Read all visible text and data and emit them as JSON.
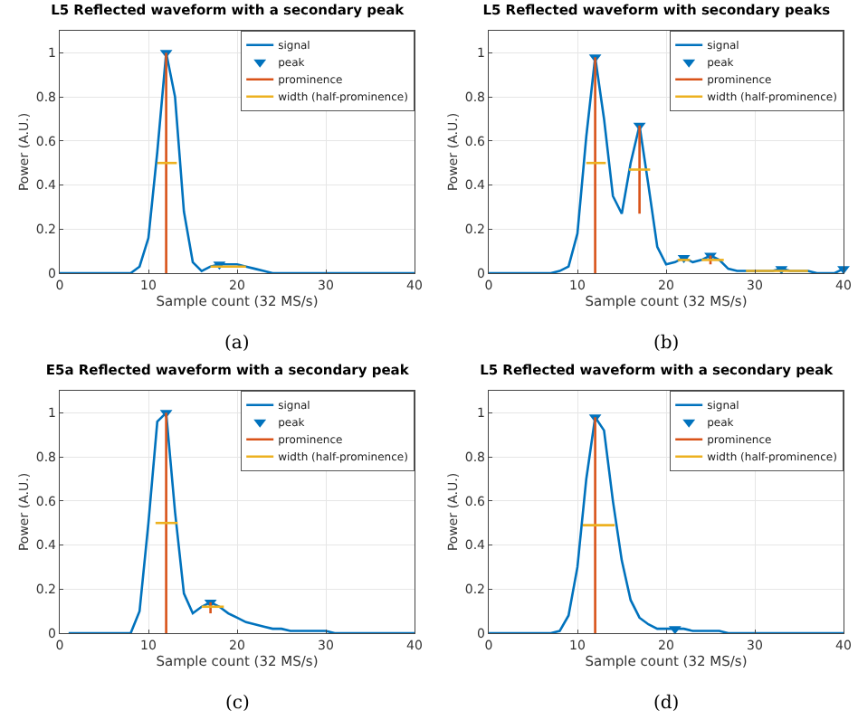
{
  "chart_data": [
    {
      "type": "line",
      "title": "L5 Reflected waveform with a secondary peak",
      "xlabel": "Sample count (32 MS/s)",
      "ylabel": "Power (A.U.)",
      "annotations": [
        "(a)"
      ],
      "xlim": [
        0,
        40
      ],
      "ylim": [
        0,
        1.1
      ],
      "xticks": [
        0,
        10,
        20,
        30,
        40
      ],
      "yticks": [
        0,
        0.2,
        0.4,
        0.6,
        0.8,
        1
      ],
      "grid": true,
      "legend": "top right",
      "x": [
        0,
        1,
        2,
        3,
        4,
        5,
        6,
        7,
        8,
        9,
        10,
        11,
        12,
        13,
        14,
        15,
        16,
        17,
        18,
        19,
        20,
        21,
        22,
        23,
        24,
        25,
        26,
        27,
        28,
        29,
        30,
        31,
        32,
        33,
        34,
        35,
        36,
        37,
        38,
        39,
        40
      ],
      "series": [
        {
          "name": "signal",
          "color": "#0072bd",
          "marker": "none",
          "values": [
            0,
            0,
            0,
            0,
            0,
            0,
            0,
            0,
            0,
            0.03,
            0.16,
            0.55,
            1,
            0.8,
            0.28,
            0.05,
            0.01,
            0.03,
            0.04,
            0.04,
            0.04,
            0.03,
            0.02,
            0.01,
            0,
            0,
            0,
            0,
            0,
            0,
            0,
            0,
            0,
            0,
            0,
            0,
            0,
            0,
            0,
            0,
            0
          ]
        },
        {
          "name": "peak",
          "type": "scatter",
          "color": "#0072bd",
          "marker": "triangle",
          "x": [
            12,
            18
          ],
          "values": [
            1,
            0.04
          ]
        },
        {
          "name": "prominence",
          "color": "#d95319",
          "marker": "none",
          "x": [
            12,
            12
          ],
          "values": [
            0,
            1
          ]
        },
        {
          "name": "width (half-prominence)",
          "color": "#edb120",
          "marker": "none",
          "x": [
            11,
            13.2,
            null,
            17,
            21
          ],
          "values": [
            0.5,
            0.5,
            null,
            0.03,
            0.03
          ]
        }
      ]
    },
    {
      "type": "line",
      "title": "L5 Reflected waveform with secondary peaks",
      "xlabel": "Sample count (32 MS/s)",
      "ylabel": "Power (A.U.)",
      "annotations": [
        "(b)"
      ],
      "xlim": [
        0,
        40
      ],
      "ylim": [
        0,
        1.1
      ],
      "xticks": [
        0,
        10,
        20,
        30,
        40
      ],
      "yticks": [
        0,
        0.2,
        0.4,
        0.6,
        0.8,
        1
      ],
      "grid": true,
      "legend": "top right",
      "x": [
        0,
        1,
        2,
        3,
        4,
        5,
        6,
        7,
        8,
        9,
        10,
        11,
        12,
        13,
        14,
        15,
        16,
        17,
        18,
        19,
        20,
        21,
        22,
        23,
        24,
        25,
        26,
        27,
        28,
        29,
        30,
        31,
        32,
        33,
        34,
        35,
        36,
        37,
        38,
        39,
        40
      ],
      "series": [
        {
          "name": "signal",
          "color": "#0072bd",
          "marker": "none",
          "values": [
            0,
            0,
            0,
            0,
            0,
            0,
            0,
            0,
            0.01,
            0.03,
            0.18,
            0.62,
            0.98,
            0.7,
            0.35,
            0.27,
            0.5,
            0.67,
            0.4,
            0.12,
            0.04,
            0.05,
            0.07,
            0.05,
            0.06,
            0.08,
            0.06,
            0.02,
            0.01,
            0.01,
            0.01,
            0.01,
            0.01,
            0.02,
            0.01,
            0.01,
            0.01,
            0,
            0,
            0,
            0.02
          ]
        },
        {
          "name": "peak",
          "type": "scatter",
          "color": "#0072bd",
          "marker": "triangle",
          "x": [
            12,
            17,
            22,
            25,
            33,
            40
          ],
          "values": [
            0.98,
            0.67,
            0.07,
            0.08,
            0.02,
            0.02
          ]
        },
        {
          "name": "prominence",
          "color": "#d95319",
          "marker": "none",
          "x": [
            12,
            12,
            null,
            17,
            17,
            null,
            25,
            25
          ],
          "values": [
            0,
            0.98,
            null,
            0.27,
            0.67,
            null,
            0.04,
            0.08
          ]
        },
        {
          "name": "width (half-prominence)",
          "color": "#edb120",
          "marker": "none",
          "x": [
            11,
            13.2,
            null,
            15.8,
            18.2,
            null,
            21.3,
            22.7,
            null,
            24,
            26.5,
            null,
            29,
            36
          ],
          "values": [
            0.5,
            0.5,
            null,
            0.47,
            0.47,
            null,
            0.06,
            0.06,
            null,
            0.06,
            0.06,
            null,
            0.01,
            0.01
          ]
        }
      ]
    },
    {
      "type": "line",
      "title": "E5a Reflected waveform with a secondary peak",
      "xlabel": "Sample count (32 MS/s)",
      "ylabel": "Power (A.U.)",
      "annotations": [
        "(c)"
      ],
      "xlim": [
        0,
        40
      ],
      "ylim": [
        0,
        1.1
      ],
      "xticks": [
        0,
        10,
        20,
        30,
        40
      ],
      "yticks": [
        0,
        0.2,
        0.4,
        0.6,
        0.8,
        1
      ],
      "grid": true,
      "legend": "top right",
      "series": [
        {
          "name": "signal",
          "color": "#0072bd",
          "marker": "none",
          "x": [
            1,
            2,
            3,
            4,
            5,
            6,
            7,
            8,
            9,
            10,
            11,
            12,
            13,
            14,
            15,
            16,
            17,
            18,
            19,
            20,
            21,
            22,
            23,
            24,
            25,
            26,
            27,
            28,
            29,
            30,
            31,
            32,
            33,
            34,
            35,
            36,
            37,
            38,
            39,
            40
          ],
          "values": [
            0,
            0,
            0,
            0,
            0,
            0,
            0,
            0,
            0.1,
            0.5,
            0.96,
            1,
            0.55,
            0.18,
            0.09,
            0.12,
            0.14,
            0.12,
            0.09,
            0.07,
            0.05,
            0.04,
            0.03,
            0.02,
            0.02,
            0.01,
            0.01,
            0.01,
            0.01,
            0.01,
            0,
            0,
            0,
            0,
            0,
            0,
            0,
            0,
            0,
            0
          ]
        },
        {
          "name": "peak",
          "type": "scatter",
          "color": "#0072bd",
          "marker": "triangle",
          "x": [
            12,
            17
          ],
          "values": [
            1,
            0.14
          ]
        },
        {
          "name": "prominence",
          "color": "#d95319",
          "marker": "none",
          "x": [
            12,
            12,
            null,
            17,
            17
          ],
          "values": [
            0,
            1,
            null,
            0.09,
            0.14
          ]
        },
        {
          "name": "width (half-prominence)",
          "color": "#edb120",
          "marker": "none",
          "x": [
            10.8,
            13.3,
            null,
            16,
            18.5
          ],
          "values": [
            0.5,
            0.5,
            null,
            0.12,
            0.12
          ]
        }
      ]
    },
    {
      "type": "line",
      "title": "L5 Reflected waveform with a secondary peak",
      "xlabel": "Sample count (32 MS/s)",
      "ylabel": "Power (A.U.)",
      "annotations": [
        "(d)"
      ],
      "xlim": [
        0,
        40
      ],
      "ylim": [
        0,
        1.1
      ],
      "xticks": [
        0,
        10,
        20,
        30,
        40
      ],
      "yticks": [
        0,
        0.2,
        0.4,
        0.6,
        0.8,
        1
      ],
      "grid": true,
      "legend": "top right",
      "x": [
        0,
        1,
        2,
        3,
        4,
        5,
        6,
        7,
        8,
        9,
        10,
        11,
        12,
        13,
        14,
        15,
        16,
        17,
        18,
        19,
        20,
        21,
        22,
        23,
        24,
        25,
        26,
        27,
        28,
        29,
        30,
        31,
        32,
        33,
        34,
        35,
        36,
        37,
        38,
        39,
        40
      ],
      "series": [
        {
          "name": "signal",
          "color": "#0072bd",
          "marker": "none",
          "values": [
            0,
            0,
            0,
            0,
            0,
            0,
            0,
            0,
            0.01,
            0.08,
            0.3,
            0.7,
            0.98,
            0.92,
            0.6,
            0.33,
            0.15,
            0.07,
            0.04,
            0.02,
            0.02,
            0.02,
            0.02,
            0.01,
            0.01,
            0.01,
            0.01,
            0,
            0,
            0,
            0,
            0,
            0,
            0,
            0,
            0,
            0,
            0,
            0,
            0,
            0
          ]
        },
        {
          "name": "peak",
          "type": "scatter",
          "color": "#0072bd",
          "marker": "triangle",
          "x": [
            12,
            21
          ],
          "values": [
            0.98,
            0.02
          ]
        },
        {
          "name": "prominence",
          "color": "#d95319",
          "marker": "none",
          "x": [
            12,
            12
          ],
          "values": [
            0,
            0.98
          ]
        },
        {
          "name": "width (half-prominence)",
          "color": "#edb120",
          "marker": "none",
          "x": [
            10.6,
            14.2
          ],
          "values": [
            0.49,
            0.49
          ]
        }
      ]
    }
  ]
}
